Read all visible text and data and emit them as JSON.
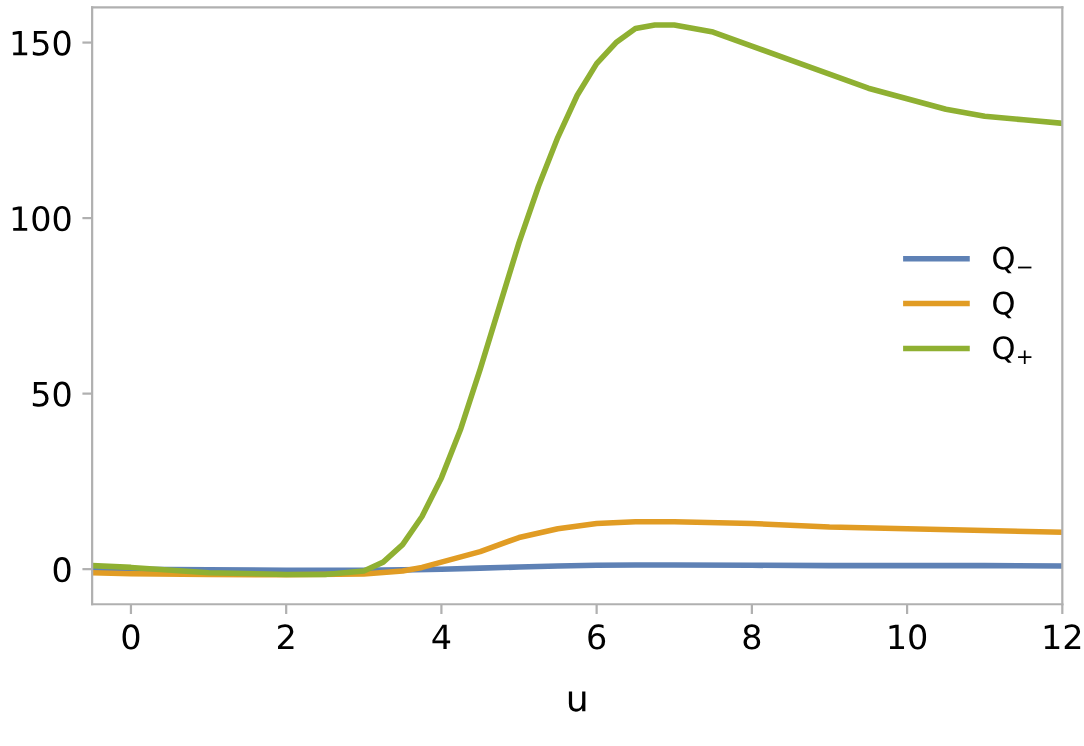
{
  "chart_data": {
    "type": "line",
    "xlabel": "u",
    "xlim": [
      -0.5,
      12
    ],
    "ylim": [
      -10,
      160
    ],
    "xticks": [
      0,
      2,
      4,
      6,
      8,
      10,
      12
    ],
    "yticks": [
      0,
      50,
      100,
      150
    ],
    "grid": false,
    "legend": "right",
    "line_style": "solid",
    "marker": "none",
    "series": [
      {
        "name": "Q$_{−}$",
        "color": "#5e81b5",
        "x": [
          -0.5,
          0,
          1,
          2,
          3,
          3.5,
          4,
          4.5,
          5,
          5.5,
          6,
          6.5,
          7,
          8,
          9,
          10,
          11,
          12
        ],
        "values": [
          0,
          0,
          -0.2,
          -0.3,
          -0.3,
          -0.2,
          0,
          0.3,
          0.6,
          0.9,
          1.1,
          1.2,
          1.2,
          1.1,
          1,
          1,
          1,
          0.9
        ]
      },
      {
        "name": "Q",
        "color": "#e19c24",
        "x": [
          -0.5,
          0,
          1,
          2,
          3,
          3.5,
          3.75,
          4,
          4.5,
          5,
          5.5,
          6,
          6.5,
          7,
          8,
          9,
          10,
          11,
          12
        ],
        "values": [
          -1,
          -1.3,
          -1.5,
          -1.6,
          -1.4,
          -0.5,
          0.5,
          2,
          5,
          9,
          11.5,
          13,
          13.5,
          13.5,
          13,
          12,
          11.5,
          11,
          10.5
        ]
      },
      {
        "name": "Q$_{+}$",
        "color": "#8fb032",
        "x": [
          -0.5,
          0,
          1,
          2,
          2.5,
          3,
          3.25,
          3.5,
          3.75,
          4,
          4.25,
          4.5,
          4.75,
          5,
          5.25,
          5.5,
          5.75,
          6,
          6.25,
          6.5,
          6.75,
          7,
          7.5,
          8,
          8.5,
          9,
          9.5,
          10,
          10.5,
          11,
          11.5,
          12
        ],
        "values": [
          1,
          0.5,
          -1,
          -1.5,
          -1.5,
          -0.5,
          2,
          7,
          15,
          26,
          40,
          57,
          75,
          93,
          109,
          123,
          135,
          144,
          150,
          154,
          155,
          155,
          153,
          149,
          145,
          141,
          137,
          134,
          131,
          129,
          128,
          127
        ]
      }
    ]
  }
}
